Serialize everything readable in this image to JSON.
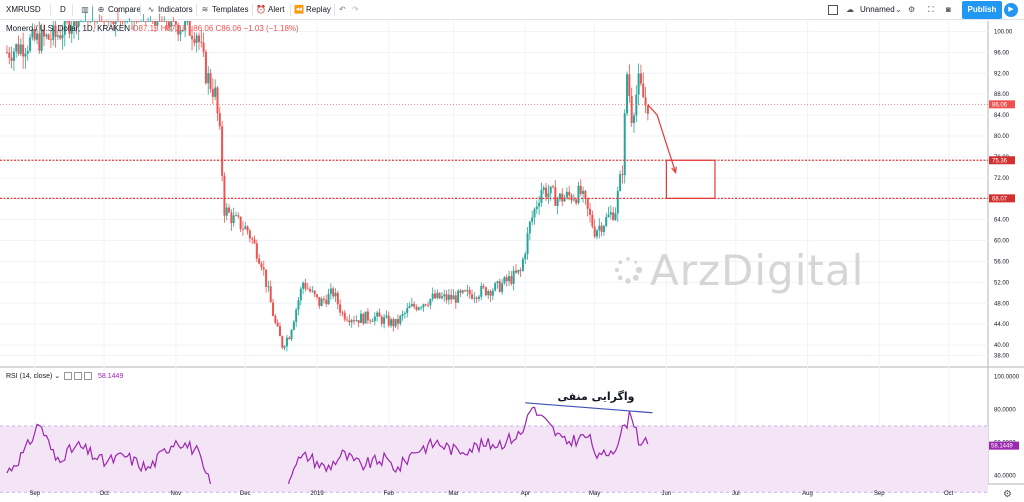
{
  "toolbar": {
    "symbol": "XMRUSD",
    "interval": "D",
    "compare_label": "Compare",
    "indicators_label": "Indicators",
    "templates_label": "Templates",
    "alert_label": "Alert",
    "replay_label": "Replay",
    "layout_name": "Unnamed",
    "publish_label": "Publish"
  },
  "legend": {
    "title": "Monero / U.S. Dollar, 1D, KRAKEN",
    "open": "O87.15",
    "high": "H87.18",
    "low": "L86.06",
    "close": "C86.06",
    "change": "−1.03 (−1.18%)"
  },
  "rsi_legend": {
    "label": "RSI (14, close)",
    "value": "58.1449"
  },
  "annotation_text": "واگرایی منفی",
  "watermark_text": "ArzDigital",
  "colors": {
    "up": "#26a69a",
    "down": "#ef5350",
    "rsi": "#9c27b0",
    "level_line": "#e53935",
    "divergence_line": "#3f51b5",
    "rsi_band": "#f3e5f5"
  },
  "chart_data": {
    "type": "candlestick",
    "ylim": [
      36,
      102
    ],
    "y_ticks": [
      38,
      40,
      44,
      48,
      52,
      56,
      60,
      64,
      68,
      72,
      76,
      80,
      84,
      88,
      92,
      96,
      100
    ],
    "x_ticks": [
      "Sep",
      "Oct",
      "Nov",
      "Dec",
      "2019",
      "Feb",
      "Mar",
      "Apr",
      "May",
      "Jun",
      "Jul",
      "Aug",
      "Sep",
      "Oct"
    ],
    "current_price": "86.06",
    "levels": [
      "75.36",
      "68.07"
    ],
    "close_path": [
      [
        "2018-08-20",
        96
      ],
      [
        "2018-08-30",
        98
      ],
      [
        "2018-09-10",
        99
      ],
      [
        "2018-09-20",
        104
      ],
      [
        "2018-10-05",
        104
      ],
      [
        "2018-10-20",
        104
      ],
      [
        "2018-11-10",
        100
      ],
      [
        "2018-11-14",
        92
      ],
      [
        "2018-11-18",
        88
      ],
      [
        "2018-11-20",
        80
      ],
      [
        "2018-11-22",
        66
      ],
      [
        "2018-11-26",
        64
      ],
      [
        "2018-12-02",
        62
      ],
      [
        "2018-12-08",
        56
      ],
      [
        "2018-12-14",
        44
      ],
      [
        "2018-12-17",
        40
      ],
      [
        "2018-12-20",
        42
      ],
      [
        "2018-12-26",
        52
      ],
      [
        "2019-01-02",
        48
      ],
      [
        "2019-01-08",
        50
      ],
      [
        "2019-01-12",
        46
      ],
      [
        "2019-01-18",
        45
      ],
      [
        "2019-01-25",
        45.5
      ],
      [
        "2019-02-04",
        44
      ],
      [
        "2019-02-10",
        47
      ],
      [
        "2019-02-20",
        49
      ],
      [
        "2019-03-01",
        49
      ],
      [
        "2019-03-10",
        50
      ],
      [
        "2019-03-20",
        51
      ],
      [
        "2019-03-30",
        54
      ],
      [
        "2019-04-03",
        63
      ],
      [
        "2019-04-08",
        70
      ],
      [
        "2019-04-15",
        68
      ],
      [
        "2019-04-25",
        69
      ],
      [
        "2019-05-01",
        62
      ],
      [
        "2019-05-06",
        64
      ],
      [
        "2019-05-10",
        66
      ],
      [
        "2019-05-13",
        74
      ],
      [
        "2019-05-15",
        92
      ],
      [
        "2019-05-17",
        84
      ],
      [
        "2019-05-20",
        90
      ],
      [
        "2019-05-23",
        86
      ],
      [
        "2019-05-24",
        86.06
      ]
    ],
    "projection": [
      [
        "2019-05-24",
        86
      ],
      [
        "2019-05-28",
        84
      ],
      [
        "2019-06-05",
        73
      ]
    ],
    "target_zone": {
      "x0": "2019-06-01",
      "x1": "2019-06-22",
      "y0": 68.07,
      "y1": 75.36
    }
  },
  "rsi_data": {
    "type": "line",
    "ylim": [
      35,
      105
    ],
    "y_ticks": [
      40,
      60,
      80,
      100
    ],
    "band": [
      30,
      70
    ],
    "values": [
      [
        "2018-08-20",
        42
      ],
      [
        "2018-08-28",
        55
      ],
      [
        "2018-09-03",
        72
      ],
      [
        "2018-09-10",
        50
      ],
      [
        "2018-09-20",
        58
      ],
      [
        "2018-10-01",
        48
      ],
      [
        "2018-10-10",
        52
      ],
      [
        "2018-10-20",
        44
      ],
      [
        "2018-11-01",
        62
      ],
      [
        "2018-11-10",
        55
      ],
      [
        "2018-11-14",
        40
      ],
      [
        "2018-11-18",
        30
      ],
      [
        "2018-11-22",
        22
      ],
      [
        "2018-12-02",
        30
      ],
      [
        "2018-12-10",
        25
      ],
      [
        "2018-12-17",
        22
      ],
      [
        "2018-12-22",
        48
      ],
      [
        "2018-12-28",
        52
      ],
      [
        "2019-01-05",
        44
      ],
      [
        "2019-01-12",
        53
      ],
      [
        "2019-01-20",
        46
      ],
      [
        "2019-01-30",
        50
      ],
      [
        "2019-02-05",
        44
      ],
      [
        "2019-02-12",
        55
      ],
      [
        "2019-02-22",
        60
      ],
      [
        "2019-03-02",
        55
      ],
      [
        "2019-03-12",
        58
      ],
      [
        "2019-03-22",
        60
      ],
      [
        "2019-03-31",
        66
      ],
      [
        "2019-04-03",
        82
      ],
      [
        "2019-04-10",
        72
      ],
      [
        "2019-04-18",
        60
      ],
      [
        "2019-04-28",
        64
      ],
      [
        "2019-05-03",
        50
      ],
      [
        "2019-05-10",
        58
      ],
      [
        "2019-05-14",
        70
      ],
      [
        "2019-05-17",
        78
      ],
      [
        "2019-05-20",
        62
      ],
      [
        "2019-05-24",
        58
      ]
    ],
    "divergence": [
      [
        "2019-04-01",
        84
      ],
      [
        "2019-05-26",
        78
      ]
    ]
  }
}
